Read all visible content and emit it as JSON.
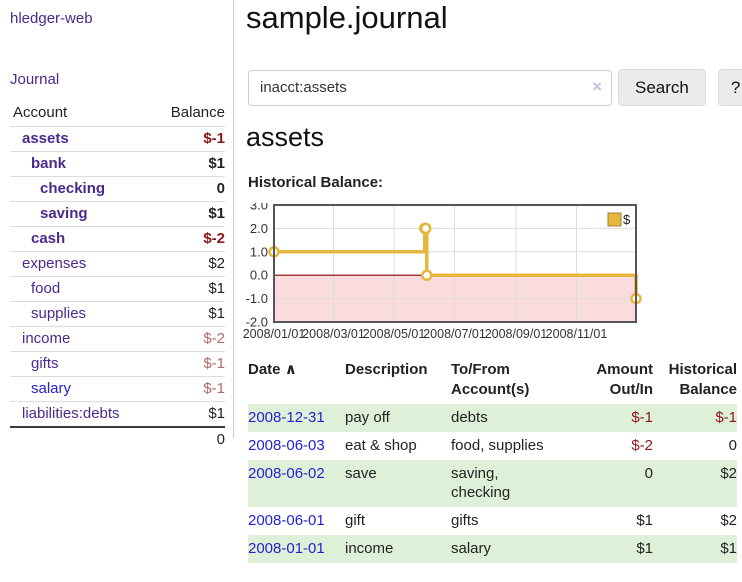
{
  "app": {
    "brand": "hledger-web",
    "journal_link": "Journal"
  },
  "colors": {
    "link_purple": "#4b2a8c",
    "link_blue": "#2323cf",
    "negative_dark": "#8b1717",
    "negative_light": "#b56a6a",
    "row_green": "#dff0d8",
    "chart_line_gold": "#e6b73e"
  },
  "sidebar": {
    "table": {
      "account_header": "Account",
      "balance_header": "Balance",
      "rows": [
        {
          "name": "assets",
          "balance": "$-1"
        },
        {
          "name": "bank",
          "balance": "$1"
        },
        {
          "name": "checking",
          "balance": "0"
        },
        {
          "name": "saving",
          "balance": "$1"
        },
        {
          "name": "cash",
          "balance": "$-2"
        },
        {
          "name": "expenses",
          "balance": "$2"
        },
        {
          "name": "food",
          "balance": "$1"
        },
        {
          "name": "supplies",
          "balance": "$1"
        },
        {
          "name": "income",
          "balance": "$-2"
        },
        {
          "name": "gifts",
          "balance": "$-1"
        },
        {
          "name": "salary",
          "balance": "$-1"
        },
        {
          "name": "liabilities:debts",
          "balance": "$1"
        }
      ],
      "total": "0"
    }
  },
  "main": {
    "title": "sample.journal",
    "search": {
      "value": "inacct:assets",
      "clear_icon": "×",
      "button_label": "Search",
      "help_label": "?"
    },
    "account_heading": "assets",
    "chart_label": "Historical Balance:"
  },
  "register": {
    "headers": [
      "Date",
      "Description",
      "To/From Account(s)",
      "Amount Out/In",
      "Historical Balance"
    ],
    "sort_icon": "∧",
    "rows": [
      {
        "date": "2008-12-31",
        "description": "pay off",
        "accounts": "debts",
        "amount": "$-1",
        "balance": "$-1"
      },
      {
        "date": "2008-06-03",
        "description": "eat & shop",
        "accounts": "food, supplies",
        "amount": "$-2",
        "balance": "0"
      },
      {
        "date": "2008-06-02",
        "description": "save",
        "accounts": "saving, checking",
        "amount": "0",
        "balance": "$2"
      },
      {
        "date": "2008-06-01",
        "description": "gift",
        "accounts": "gifts",
        "amount": "$1",
        "balance": "$2"
      },
      {
        "date": "2008-01-01",
        "description": "income",
        "accounts": "salary",
        "amount": "$1",
        "balance": "$1"
      }
    ]
  },
  "chart_data": {
    "type": "line",
    "step": true,
    "title": "Historical Balance",
    "series": [
      {
        "name": "$",
        "color": "#e6b73e",
        "points": [
          [
            "2008-01-01",
            1
          ],
          [
            "2008-06-01",
            2
          ],
          [
            "2008-06-02",
            2
          ],
          [
            "2008-06-03",
            0
          ],
          [
            "2008-12-31",
            -1
          ]
        ]
      }
    ],
    "x_range": [
      "2008-01-01",
      "2008-12-31"
    ],
    "x_ticks": [
      {
        "date": "2008-01-01",
        "label": "2008/01/01"
      },
      {
        "date": "2008-03-01",
        "label": "2008/03/01"
      },
      {
        "date": "2008-05-01",
        "label": "2008/05/01"
      },
      {
        "date": "2008-07-01",
        "label": "2008/07/01"
      },
      {
        "date": "2008-09-01",
        "label": "2008/09/01"
      },
      {
        "date": "2008-11-01",
        "label": "2008/11/01"
      }
    ],
    "y_ticks": [
      3,
      2,
      1,
      0,
      -1,
      -2
    ],
    "ylim": [
      -2,
      3
    ],
    "grid": true,
    "legend_position": "top-right",
    "negative_fill": "#fbdcdc",
    "zero_line_color": "#8b0000"
  }
}
